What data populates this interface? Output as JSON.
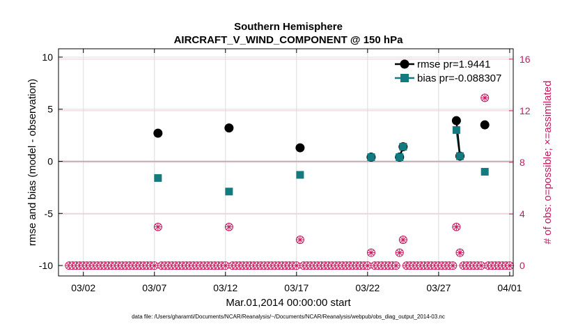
{
  "chart_data": {
    "type": "scatter",
    "title": "Southern Hemisphere",
    "subtitle": "AIRCRAFT_V_WIND_COMPONENT @ 150 hPa",
    "xlabel": "Mar.01,2014 00:00:00 start",
    "ylabel": "rmse and bias (model - observation)",
    "y2label": "# of obs: o=possible; ×=assimilated",
    "footnote": "data file: /Users/gharamti/Documents/NCAR/Reanalysis/~/Documents/NCAR/Reanalysis/webpub/obs_diag_output_2014-03.nc",
    "xlim": [
      -0.75,
      31.25
    ],
    "ylim": [
      -11,
      10.8
    ],
    "y2lim": [
      -0.8,
      16.8
    ],
    "x_ticks": [
      {
        "x": 1,
        "label": "03/02"
      },
      {
        "x": 6,
        "label": "03/07"
      },
      {
        "x": 11,
        "label": "03/12"
      },
      {
        "x": 16,
        "label": "03/17"
      },
      {
        "x": 21,
        "label": "03/22"
      },
      {
        "x": 26,
        "label": "03/27"
      },
      {
        "x": 31,
        "label": "04/01"
      }
    ],
    "y_ticks": [
      {
        "y": 10,
        "label": "10"
      },
      {
        "y": 5,
        "label": "5"
      },
      {
        "y": 0,
        "label": "0"
      },
      {
        "y": -5,
        "label": "-5"
      },
      {
        "y": -10,
        "label": "-10"
      }
    ],
    "y2_ticks": [
      {
        "y": 0,
        "label": "0"
      },
      {
        "y": 4,
        "label": "4"
      },
      {
        "y": 8,
        "label": "8"
      },
      {
        "y": 12,
        "label": "12"
      },
      {
        "y": 16,
        "label": "16"
      }
    ],
    "series": [
      {
        "name": "rmse",
        "legend_label": "rmse pr=1.9441",
        "color": "#000000",
        "marker": "circle",
        "points": [
          {
            "x": 6.25,
            "y": 2.7
          },
          {
            "x": 11.25,
            "y": 3.2
          },
          {
            "x": 16.25,
            "y": 1.3
          },
          {
            "x": 21.25,
            "y": 0.4
          },
          {
            "x": 23.25,
            "y": 0.4
          },
          {
            "x": 23.5,
            "y": 1.4
          },
          {
            "x": 27.25,
            "y": 3.9
          },
          {
            "x": 27.5,
            "y": 0.5
          },
          {
            "x": 29.25,
            "y": 3.5
          }
        ],
        "line_segments": [
          [
            4,
            5
          ],
          [
            6,
            7
          ]
        ]
      },
      {
        "name": "bias",
        "legend_label": "bias pr=-0.088307",
        "color": "#137b80",
        "marker": "square",
        "points": [
          {
            "x": 6.25,
            "y": -1.6
          },
          {
            "x": 11.25,
            "y": -2.9
          },
          {
            "x": 16.25,
            "y": -1.3
          },
          {
            "x": 21.25,
            "y": 0.4
          },
          {
            "x": 23.25,
            "y": 0.4
          },
          {
            "x": 23.5,
            "y": 1.4
          },
          {
            "x": 27.25,
            "y": 3.0
          },
          {
            "x": 27.5,
            "y": 0.5
          },
          {
            "x": 29.25,
            "y": -1.0
          }
        ],
        "line_segments": [
          [
            4,
            5
          ],
          [
            6,
            7
          ]
        ]
      },
      {
        "name": "obs_possible_assimilated",
        "color": "#c8175d",
        "marker": "circle-x",
        "axis": "right",
        "nonzero_points": [
          {
            "x": 6.25,
            "y": 3
          },
          {
            "x": 11.25,
            "y": 3
          },
          {
            "x": 16.25,
            "y": 2
          },
          {
            "x": 21.25,
            "y": 1
          },
          {
            "x": 23.25,
            "y": 1
          },
          {
            "x": 23.5,
            "y": 2
          },
          {
            "x": 27.25,
            "y": 3
          },
          {
            "x": 27.5,
            "y": 1
          },
          {
            "x": 29.25,
            "y": 13
          }
        ],
        "zero_x_start": 0,
        "zero_x_end": 31,
        "zero_x_step": 0.25
      }
    ]
  }
}
